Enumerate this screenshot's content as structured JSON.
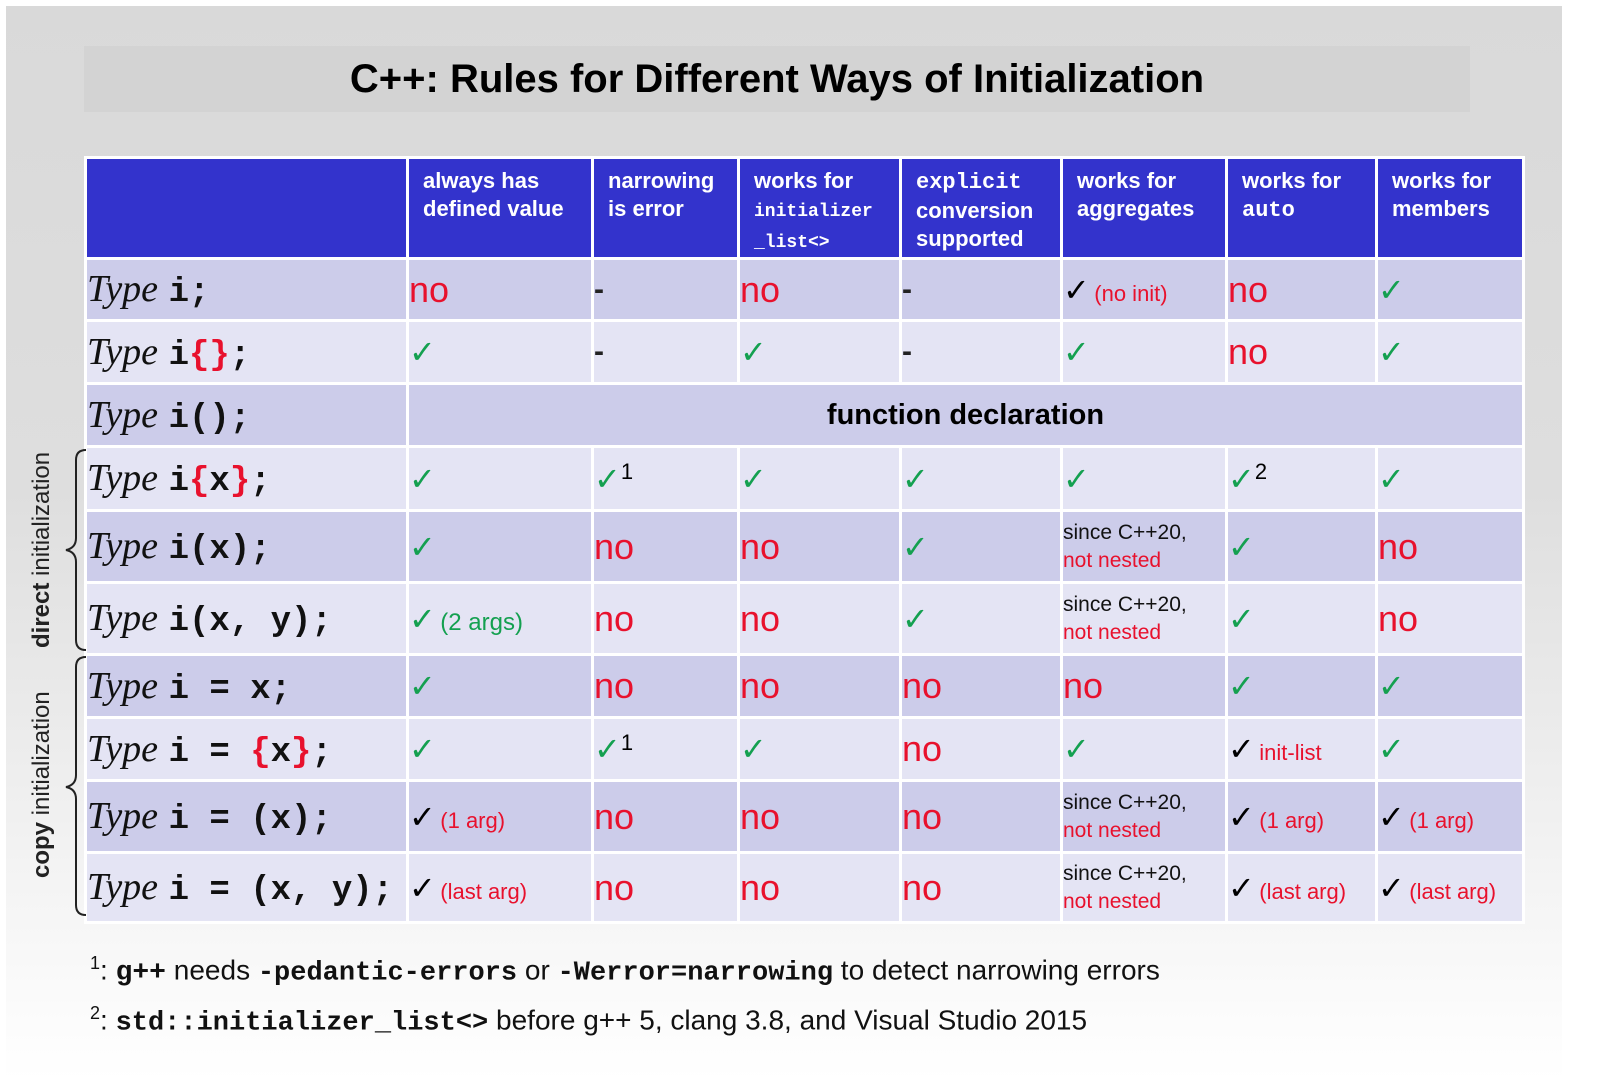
{
  "title": "C++: Rules for Different Ways of Initialization",
  "colors": {
    "header_bg": "#3333cc",
    "row_dark": "#ccccea",
    "row_light": "#e4e4f4",
    "no_red": "#e8112d",
    "check_green": "#14a050"
  },
  "columns": [
    {
      "line1": "always has",
      "line2": "defined value"
    },
    {
      "line1": "narrowing",
      "line2": "is error"
    },
    {
      "line1": "works for",
      "line2": "initializer",
      "line3": "_list<>"
    },
    {
      "line1": "explicit",
      "line2": "conversion",
      "line3": "supported"
    },
    {
      "line1": "works for",
      "line2": "aggregates"
    },
    {
      "line1": "works for",
      "line2": "auto"
    },
    {
      "line1": "works for",
      "line2": "members"
    }
  ],
  "rows": [
    {
      "type": "Type",
      "pre": "i",
      "red1": "",
      "mid": "",
      "red2": "",
      "post": ";",
      "cells": [
        {
          "kind": "no",
          "text": "no"
        },
        {
          "kind": "dash",
          "text": "-"
        },
        {
          "kind": "no",
          "text": "no"
        },
        {
          "kind": "dash",
          "text": "-"
        },
        {
          "kind": "check-black",
          "text": "✓",
          "note": "(no init)"
        },
        {
          "kind": "no",
          "text": "no"
        },
        {
          "kind": "check",
          "text": "✓"
        }
      ]
    },
    {
      "type": "Type",
      "pre": "i",
      "red1": "{",
      "mid": "",
      "red2": "}",
      "post": ";",
      "cells": [
        {
          "kind": "check",
          "text": "✓"
        },
        {
          "kind": "dash",
          "text": "-"
        },
        {
          "kind": "check",
          "text": "✓"
        },
        {
          "kind": "dash",
          "text": "-"
        },
        {
          "kind": "check",
          "text": "✓"
        },
        {
          "kind": "no",
          "text": "no"
        },
        {
          "kind": "check",
          "text": "✓"
        }
      ]
    },
    {
      "type": "Type",
      "pre": "i();",
      "merged": "function declaration"
    },
    {
      "type": "Type",
      "pre": "i",
      "red1": "{",
      "mid": "x",
      "red2": "}",
      "post": ";",
      "cells": [
        {
          "kind": "check",
          "text": "✓"
        },
        {
          "kind": "check",
          "text": "✓",
          "sup": "1"
        },
        {
          "kind": "check",
          "text": "✓"
        },
        {
          "kind": "check",
          "text": "✓"
        },
        {
          "kind": "check",
          "text": "✓"
        },
        {
          "kind": "check",
          "text": "✓",
          "sup": "2"
        },
        {
          "kind": "check",
          "text": "✓"
        }
      ]
    },
    {
      "type": "Type",
      "pre": "i(x);",
      "cells": [
        {
          "kind": "check",
          "text": "✓"
        },
        {
          "kind": "no",
          "text": "no"
        },
        {
          "kind": "no",
          "text": "no"
        },
        {
          "kind": "check",
          "text": "✓"
        },
        {
          "kind": "since",
          "line1": "since C++20,",
          "line2": "not nested"
        },
        {
          "kind": "check",
          "text": "✓"
        },
        {
          "kind": "no",
          "text": "no"
        }
      ]
    },
    {
      "type": "Type",
      "pre": "i(x, y);",
      "cells": [
        {
          "kind": "check",
          "text": "✓",
          "note_green": "(2 args)"
        },
        {
          "kind": "no",
          "text": "no"
        },
        {
          "kind": "no",
          "text": "no"
        },
        {
          "kind": "check",
          "text": "✓"
        },
        {
          "kind": "since",
          "line1": "since C++20,",
          "line2": "not nested"
        },
        {
          "kind": "check",
          "text": "✓"
        },
        {
          "kind": "no",
          "text": "no"
        }
      ]
    },
    {
      "type": "Type",
      "pre": "i = x;",
      "cells": [
        {
          "kind": "check",
          "text": "✓"
        },
        {
          "kind": "no",
          "text": "no"
        },
        {
          "kind": "no",
          "text": "no"
        },
        {
          "kind": "no",
          "text": "no"
        },
        {
          "kind": "no",
          "text": "no"
        },
        {
          "kind": "check",
          "text": "✓"
        },
        {
          "kind": "check",
          "text": "✓"
        }
      ]
    },
    {
      "type": "Type",
      "pre": "i = ",
      "red1": "{",
      "mid": "x",
      "red2": "}",
      "post": ";",
      "cells": [
        {
          "kind": "check",
          "text": "✓"
        },
        {
          "kind": "check",
          "text": "✓",
          "sup": "1"
        },
        {
          "kind": "check",
          "text": "✓"
        },
        {
          "kind": "no",
          "text": "no"
        },
        {
          "kind": "check",
          "text": "✓"
        },
        {
          "kind": "check-black",
          "text": "✓",
          "note": "init-list"
        },
        {
          "kind": "check",
          "text": "✓"
        }
      ]
    },
    {
      "type": "Type",
      "pre": "i = (x);",
      "cells": [
        {
          "kind": "check-black",
          "text": "✓",
          "note": "(1 arg)"
        },
        {
          "kind": "no",
          "text": "no"
        },
        {
          "kind": "no",
          "text": "no"
        },
        {
          "kind": "no",
          "text": "no"
        },
        {
          "kind": "since",
          "line1": "since C++20,",
          "line2": "not nested"
        },
        {
          "kind": "check-black",
          "text": "✓",
          "note": "(1 arg)"
        },
        {
          "kind": "check-black",
          "text": "✓",
          "note": "(1 arg)"
        }
      ]
    },
    {
      "type": "Type",
      "pre": "i = (x, y);",
      "cells": [
        {
          "kind": "check-black",
          "text": "✓",
          "note": "(last arg)"
        },
        {
          "kind": "no",
          "text": "no"
        },
        {
          "kind": "no",
          "text": "no"
        },
        {
          "kind": "no",
          "text": "no"
        },
        {
          "kind": "since",
          "line1": "since C++20,",
          "line2": "not nested"
        },
        {
          "kind": "check-black",
          "text": "✓",
          "note": "(last arg)"
        },
        {
          "kind": "check-black",
          "text": "✓",
          "note": "(last arg)"
        }
      ]
    }
  ],
  "groups": {
    "direct": {
      "bold": "direct",
      "rest": " initialization"
    },
    "copy": {
      "bold": "copy",
      "rest": " initialization"
    }
  },
  "footnotes": [
    {
      "mark": "1",
      "parts": [
        {
          "t": ": ",
          "s": "plain"
        },
        {
          "t": "g++",
          "s": "bold"
        },
        {
          "t": " needs ",
          "s": "plain"
        },
        {
          "t": "-pedantic-errors",
          "s": "mono"
        },
        {
          "t": " or ",
          "s": "plain"
        },
        {
          "t": "-Werror=narrowing",
          "s": "mono"
        },
        {
          "t": " to detect narrowing errors",
          "s": "plain"
        }
      ]
    },
    {
      "mark": "2",
      "parts": [
        {
          "t": ": ",
          "s": "plain"
        },
        {
          "t": "std::initializer_list<>",
          "s": "mono"
        },
        {
          "t": " before g++ 5, clang 3.8, and Visual Studio 2015",
          "s": "plain"
        }
      ]
    }
  ]
}
